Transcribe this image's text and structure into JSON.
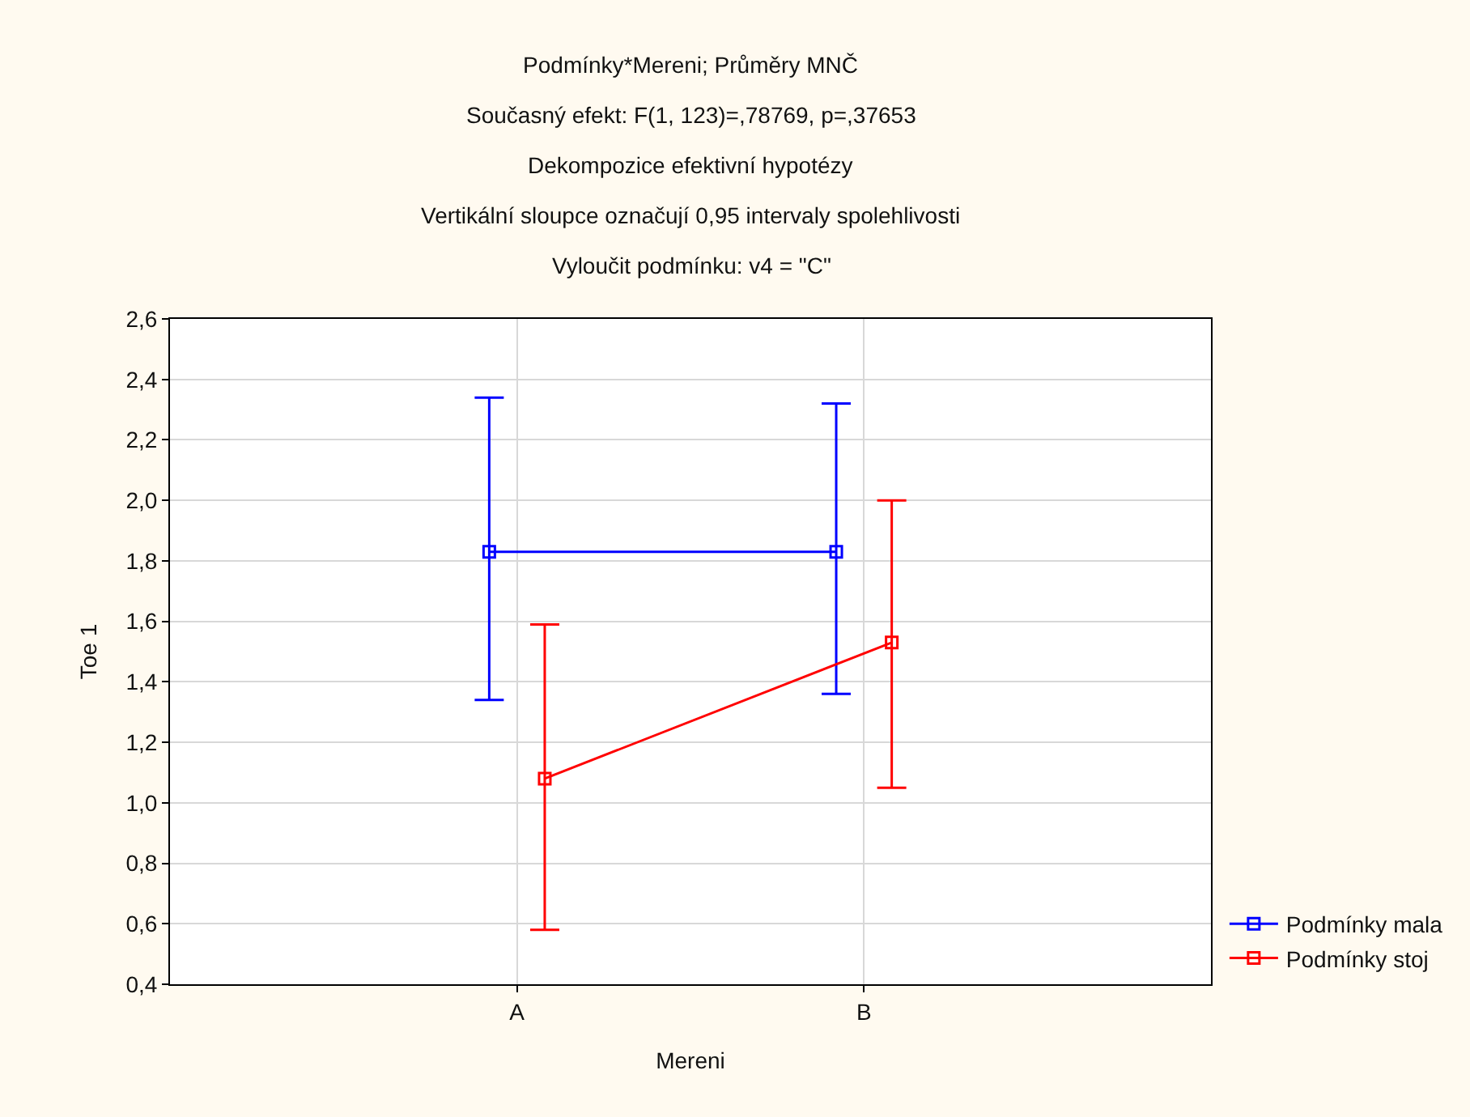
{
  "chart_data": {
    "type": "line",
    "title": "Podmínky*Mereni; Průměry MNČ",
    "annotations": [
      "Současný efekt: F(1, 123)=,78769, p=,37653",
      "Dekompozice efektivní hypotézy",
      "Vertikální sloupce označují 0,95 intervaly spolehlivosti",
      "Vyloučit podmínku: v4 = \"C\""
    ],
    "xlabel": "Mereni",
    "ylabel": "Toe 1",
    "categories": [
      "A",
      "B"
    ],
    "series": [
      {
        "name": "Podmínky mala",
        "color": "#0000ff",
        "values": [
          1.83,
          1.83
        ],
        "errors": [
          [
            1.34,
            2.34
          ],
          [
            1.36,
            2.32
          ]
        ]
      },
      {
        "name": "Podmínky stoj",
        "color": "#ff0000",
        "values": [
          1.08,
          1.53
        ],
        "errors": [
          [
            0.58,
            1.59
          ],
          [
            1.05,
            2.0
          ]
        ]
      }
    ],
    "ylim": [
      0.4,
      2.6
    ],
    "yticks": [
      {
        "value": 0.4,
        "label": "0,4"
      },
      {
        "value": 0.6,
        "label": "0,6"
      },
      {
        "value": 0.8,
        "label": "0,8"
      },
      {
        "value": 1.0,
        "label": "1,0"
      },
      {
        "value": 1.2,
        "label": "1,2"
      },
      {
        "value": 1.4,
        "label": "1,4"
      },
      {
        "value": 1.6,
        "label": "1,6"
      },
      {
        "value": 1.8,
        "label": "1,8"
      },
      {
        "value": 2.0,
        "label": "2,0"
      },
      {
        "value": 2.2,
        "label": "2,2"
      },
      {
        "value": 2.4,
        "label": "2,4"
      },
      {
        "value": 2.6,
        "label": "2,6"
      }
    ],
    "grid": true,
    "legend": "bottom right",
    "marker": "square",
    "line_style": "solid"
  }
}
